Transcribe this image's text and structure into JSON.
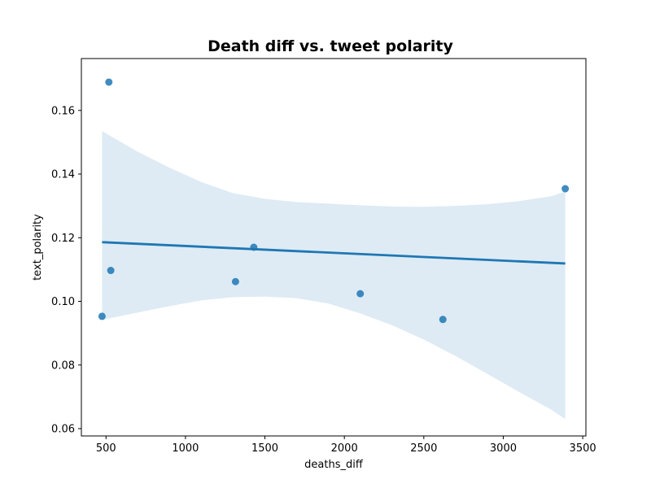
{
  "chart_data": {
    "type": "scatter",
    "title": "Death diff vs. tweet polarity",
    "xlabel": "deaths_diff",
    "ylabel": "text_polarity",
    "xlim": [
      345,
      3520
    ],
    "ylim": [
      0.0577,
      0.1763
    ],
    "x_ticks": [
      500,
      1000,
      1500,
      2000,
      2500,
      3000,
      3500
    ],
    "x_tick_labels": [
      "500",
      "1000",
      "1500",
      "2000",
      "2500",
      "3000",
      "3500"
    ],
    "y_ticks": [
      0.06,
      0.08,
      0.1,
      0.12,
      0.14,
      0.16
    ],
    "y_tick_labels": [
      "0.06",
      "0.08",
      "0.10",
      "0.12",
      "0.14",
      "0.16"
    ],
    "grid": false,
    "legend": "none",
    "series": [
      {
        "x": [
          475,
          518,
          530,
          1315,
          1430,
          2100,
          2620,
          3390
        ],
        "y": [
          0.0953,
          0.1689,
          0.1097,
          0.1062,
          0.117,
          0.1024,
          0.0943,
          0.1354
        ]
      }
    ],
    "regression_line": {
      "x": [
        475,
        3390
      ],
      "y": [
        0.1186,
        0.1119
      ]
    },
    "confidence_band": {
      "x": [
        475,
        700,
        900,
        1100,
        1300,
        1500,
        1700,
        1900,
        2100,
        2300,
        2500,
        2700,
        2900,
        3100,
        3300,
        3390
      ],
      "upper": [
        0.1535,
        0.147,
        0.142,
        0.1375,
        0.134,
        0.1322,
        0.1312,
        0.1307,
        0.1302,
        0.1298,
        0.1297,
        0.13,
        0.1305,
        0.1315,
        0.133,
        0.1345
      ],
      "lower": [
        0.0942,
        0.0965,
        0.0985,
        0.1003,
        0.1013,
        0.1015,
        0.101,
        0.0993,
        0.0962,
        0.0925,
        0.088,
        0.0828,
        0.0772,
        0.0715,
        0.066,
        0.063
      ]
    },
    "colors": {
      "points": "#1f77b4",
      "line": "#1f77b4",
      "band": "#1f77b4"
    }
  }
}
